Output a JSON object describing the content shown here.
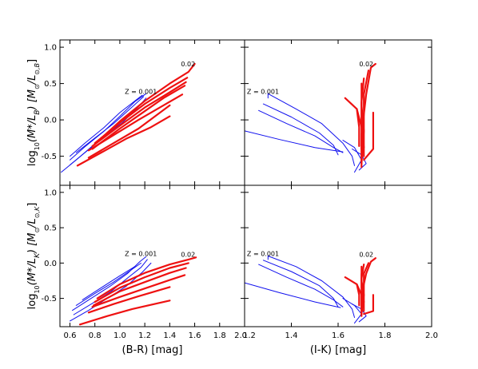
{
  "chart_data": {
    "type": "line",
    "colors": {
      "low_z": "#1010ee",
      "high_z": "#ee1111",
      "frame": "#000000"
    },
    "x_axes": [
      {
        "label": "(B-R) [mag]",
        "ticks": [
          "0.6",
          "0.8",
          "1.0",
          "1.2",
          "1.4",
          "1.6",
          "1.8",
          "2.0"
        ],
        "xlim": [
          0.52,
          2.0
        ]
      },
      {
        "label": "(I-K) [mag]",
        "ticks": [
          "1.2",
          "1.4",
          "1.6",
          "1.8",
          "2.0"
        ],
        "xlim": [
          1.2,
          2.0
        ]
      }
    ],
    "y_axes": [
      {
        "label": "log10(M*/L_B)  [M_sun/L_sun,B]",
        "ticks": [
          "1.0",
          "0.5",
          "0.0",
          "-0.5"
        ],
        "ylim": [
          -0.9,
          1.1
        ]
      },
      {
        "label": "log10(M*/L_K)  [M_sun/L_sun,K]",
        "ticks": [
          "1.0",
          "0.5",
          "0.0",
          "-0.5"
        ],
        "ylim": [
          -0.9,
          1.1
        ]
      }
    ],
    "panels": [
      {
        "id": "BR_B",
        "annotations": [
          {
            "text": "Z = 0.001",
            "x": 1.04,
            "y": 0.36
          },
          {
            "text": "0.02",
            "x": 1.49,
            "y": 0.74
          }
        ],
        "blue": [
          [
            [
              0.53,
              -0.72
            ],
            [
              0.65,
              -0.55
            ],
            [
              0.8,
              -0.33
            ],
            [
              0.95,
              -0.13
            ],
            [
              1.08,
              0.08
            ],
            [
              1.2,
              0.27
            ]
          ],
          [
            [
              0.6,
              -0.62
            ],
            [
              0.72,
              -0.45
            ],
            [
              0.87,
              -0.24
            ],
            [
              1.02,
              -0.04
            ],
            [
              1.15,
              0.18
            ],
            [
              1.21,
              0.3
            ]
          ],
          [
            [
              0.6,
              -0.55
            ],
            [
              0.72,
              -0.37
            ],
            [
              0.87,
              -0.16
            ],
            [
              1.0,
              0.05
            ],
            [
              1.12,
              0.25
            ],
            [
              1.21,
              0.36
            ]
          ],
          [
            [
              0.6,
              -0.5
            ],
            [
              0.72,
              -0.32
            ],
            [
              0.87,
              -0.11
            ],
            [
              1.0,
              0.1
            ],
            [
              1.18,
              0.34
            ]
          ],
          [
            [
              0.65,
              -0.45
            ],
            [
              0.8,
              -0.25
            ],
            [
              0.95,
              -0.05
            ],
            [
              1.1,
              0.18
            ],
            [
              1.19,
              0.32
            ]
          ]
        ],
        "red": [
          [
            [
              0.66,
              -0.63
            ],
            [
              0.85,
              -0.45
            ],
            [
              1.05,
              -0.26
            ],
            [
              1.25,
              -0.1
            ],
            [
              1.4,
              0.05
            ]
          ],
          [
            [
              0.75,
              -0.52
            ],
            [
              0.95,
              -0.32
            ],
            [
              1.15,
              -0.12
            ],
            [
              1.4,
              0.2
            ]
          ],
          [
            [
              0.75,
              -0.42
            ],
            [
              0.95,
              -0.21
            ],
            [
              1.15,
              0.0
            ],
            [
              1.35,
              0.2
            ],
            [
              1.5,
              0.35
            ]
          ],
          [
            [
              0.78,
              -0.4
            ],
            [
              1.0,
              -0.12
            ],
            [
              1.2,
              0.12
            ],
            [
              1.35,
              0.3
            ],
            [
              1.52,
              0.47
            ]
          ],
          [
            [
              0.78,
              -0.36
            ],
            [
              1.0,
              -0.08
            ],
            [
              1.2,
              0.17
            ],
            [
              1.4,
              0.38
            ],
            [
              1.53,
              0.52
            ]
          ],
          [
            [
              0.8,
              -0.32
            ],
            [
              1.0,
              -0.04
            ],
            [
              1.2,
              0.22
            ],
            [
              1.4,
              0.44
            ],
            [
              1.54,
              0.58
            ]
          ],
          [
            [
              0.82,
              -0.3
            ],
            [
              1.0,
              -0.02
            ],
            [
              1.2,
              0.26
            ],
            [
              1.4,
              0.5
            ],
            [
              1.55,
              0.66
            ],
            [
              1.6,
              0.77
            ]
          ]
        ]
      },
      {
        "id": "IK_B",
        "annotations": [
          {
            "text": "Z = 0.001",
            "x": 1.21,
            "y": 0.36
          },
          {
            "text": "0.02",
            "x": 1.69,
            "y": 0.74
          }
        ],
        "blue": [
          [
            [
              1.2,
              -0.15
            ],
            [
              1.35,
              -0.27
            ],
            [
              1.5,
              -0.38
            ],
            [
              1.62,
              -0.44
            ]
          ],
          [
            [
              1.26,
              0.13
            ],
            [
              1.38,
              -0.05
            ],
            [
              1.5,
              -0.22
            ],
            [
              1.58,
              -0.38
            ],
            [
              1.62,
              -0.45
            ]
          ],
          [
            [
              1.28,
              0.22
            ],
            [
              1.4,
              0.04
            ],
            [
              1.52,
              -0.18
            ],
            [
              1.58,
              -0.35
            ],
            [
              1.6,
              -0.48
            ]
          ],
          [
            [
              1.3,
              0.3
            ],
            [
              1.3,
              0.36
            ],
            [
              1.42,
              0.15
            ],
            [
              1.53,
              -0.05
            ],
            [
              1.62,
              -0.32
            ],
            [
              1.66,
              -0.5
            ],
            [
              1.67,
              -0.63
            ]
          ],
          [
            [
              1.62,
              -0.28
            ],
            [
              1.67,
              -0.38
            ],
            [
              1.7,
              -0.55
            ],
            [
              1.67,
              -0.72
            ]
          ],
          [
            [
              1.66,
              -0.4
            ],
            [
              1.7,
              -0.48
            ],
            [
              1.72,
              -0.6
            ],
            [
              1.69,
              -0.69
            ]
          ]
        ],
        "red": [
          [
            [
              1.63,
              0.3
            ],
            [
              1.68,
              0.15
            ],
            [
              1.7,
              -0.1
            ],
            [
              1.7,
              -0.4
            ]
          ],
          [
            [
              1.68,
              0.15
            ],
            [
              1.69,
              -0.1
            ],
            [
              1.69,
              -0.36
            ]
          ],
          [
            [
              1.7,
              0.24
            ],
            [
              1.7,
              -0.08
            ],
            [
              1.71,
              -0.38
            ]
          ],
          [
            [
              1.7,
              0.5
            ],
            [
              1.7,
              0.2
            ],
            [
              1.71,
              -0.15
            ],
            [
              1.7,
              -0.6
            ]
          ],
          [
            [
              1.71,
              0.57
            ],
            [
              1.7,
              0.25
            ],
            [
              1.7,
              -0.2
            ],
            [
              1.7,
              -0.65
            ]
          ],
          [
            [
              1.73,
              0.68
            ],
            [
              1.71,
              0.35
            ],
            [
              1.71,
              -0.05
            ],
            [
              1.71,
              -0.5
            ]
          ],
          [
            [
              1.76,
              0.77
            ],
            [
              1.74,
              0.72
            ],
            [
              1.72,
              0.35
            ],
            [
              1.7,
              -0.2
            ],
            [
              1.7,
              -0.58
            ]
          ],
          [
            [
              1.75,
              0.1
            ],
            [
              1.75,
              -0.4
            ],
            [
              1.71,
              -0.55
            ]
          ]
        ]
      },
      {
        "id": "BR_K",
        "annotations": [
          {
            "text": "Z = 0.001",
            "x": 1.04,
            "y": 0.1
          },
          {
            "text": "0.02",
            "x": 1.49,
            "y": 0.09
          }
        ],
        "blue": [
          [
            [
              0.6,
              -0.82
            ],
            [
              0.75,
              -0.67
            ],
            [
              0.9,
              -0.5
            ],
            [
              1.05,
              -0.33
            ],
            [
              1.18,
              -0.13
            ],
            [
              1.25,
              0.0
            ]
          ],
          [
            [
              0.63,
              -0.73
            ],
            [
              0.78,
              -0.57
            ],
            [
              0.93,
              -0.4
            ],
            [
              1.07,
              -0.2
            ],
            [
              1.17,
              -0.06
            ],
            [
              1.22,
              0.05
            ]
          ],
          [
            [
              0.62,
              -0.67
            ],
            [
              0.77,
              -0.5
            ],
            [
              0.92,
              -0.33
            ],
            [
              1.06,
              -0.15
            ],
            [
              1.16,
              0.02
            ],
            [
              1.21,
              0.09
            ]
          ],
          [
            [
              0.65,
              -0.6
            ],
            [
              0.8,
              -0.43
            ],
            [
              0.95,
              -0.27
            ],
            [
              1.08,
              -0.11
            ],
            [
              1.17,
              0.0
            ]
          ],
          [
            [
              0.7,
              -0.52
            ],
            [
              0.85,
              -0.35
            ],
            [
              1.0,
              -0.18
            ],
            [
              1.12,
              -0.05
            ]
          ]
        ],
        "red": [
          [
            [
              0.68,
              -0.87
            ],
            [
              0.9,
              -0.75
            ],
            [
              1.1,
              -0.65
            ],
            [
              1.4,
              -0.53
            ]
          ],
          [
            [
              0.75,
              -0.7
            ],
            [
              0.95,
              -0.58
            ],
            [
              1.15,
              -0.47
            ],
            [
              1.4,
              -0.34
            ]
          ],
          [
            [
              0.78,
              -0.62
            ],
            [
              1.0,
              -0.48
            ],
            [
              1.2,
              -0.36
            ],
            [
              1.4,
              -0.24
            ],
            [
              1.52,
              -0.17
            ]
          ],
          [
            [
              0.79,
              -0.6
            ],
            [
              1.0,
              -0.4
            ],
            [
              1.2,
              -0.27
            ],
            [
              1.4,
              -0.14
            ],
            [
              1.53,
              -0.07
            ]
          ],
          [
            [
              0.8,
              -0.55
            ],
            [
              1.0,
              -0.35
            ],
            [
              1.2,
              -0.2
            ],
            [
              1.4,
              -0.07
            ],
            [
              1.55,
              0.0
            ]
          ],
          [
            [
              0.82,
              -0.5
            ],
            [
              1.0,
              -0.3
            ],
            [
              1.2,
              -0.14
            ],
            [
              1.4,
              -0.02
            ],
            [
              1.55,
              0.05
            ],
            [
              1.61,
              0.08
            ]
          ]
        ]
      },
      {
        "id": "IK_K",
        "annotations": [
          {
            "text": "Z = 0.001",
            "x": 1.21,
            "y": 0.1
          },
          {
            "text": "0.02",
            "x": 1.69,
            "y": 0.09
          }
        ],
        "blue": [
          [
            [
              1.2,
              -0.28
            ],
            [
              1.35,
              -0.42
            ],
            [
              1.5,
              -0.55
            ],
            [
              1.61,
              -0.63
            ]
          ],
          [
            [
              1.26,
              -0.02
            ],
            [
              1.38,
              -0.2
            ],
            [
              1.5,
              -0.37
            ],
            [
              1.58,
              -0.52
            ],
            [
              1.62,
              -0.62
            ]
          ],
          [
            [
              1.28,
              0.04
            ],
            [
              1.4,
              -0.12
            ],
            [
              1.52,
              -0.32
            ],
            [
              1.58,
              -0.5
            ],
            [
              1.6,
              -0.62
            ]
          ],
          [
            [
              1.3,
              0.05
            ],
            [
              1.3,
              0.1
            ],
            [
              1.42,
              -0.05
            ],
            [
              1.53,
              -0.25
            ],
            [
              1.62,
              -0.48
            ],
            [
              1.66,
              -0.65
            ],
            [
              1.67,
              -0.77
            ]
          ],
          [
            [
              1.62,
              -0.5
            ],
            [
              1.67,
              -0.6
            ],
            [
              1.7,
              -0.72
            ],
            [
              1.67,
              -0.85
            ]
          ],
          [
            [
              1.66,
              -0.58
            ],
            [
              1.7,
              -0.65
            ],
            [
              1.72,
              -0.75
            ],
            [
              1.69,
              -0.83
            ]
          ]
        ],
        "red": [
          [
            [
              1.63,
              -0.2
            ],
            [
              1.68,
              -0.3
            ],
            [
              1.7,
              -0.45
            ],
            [
              1.7,
              -0.65
            ]
          ],
          [
            [
              1.68,
              -0.3
            ],
            [
              1.69,
              -0.45
            ],
            [
              1.69,
              -0.6
            ]
          ],
          [
            [
              1.7,
              -0.15
            ],
            [
              1.7,
              -0.35
            ],
            [
              1.71,
              -0.55
            ]
          ],
          [
            [
              1.7,
              -0.05
            ],
            [
              1.7,
              -0.25
            ],
            [
              1.71,
              -0.45
            ],
            [
              1.7,
              -0.72
            ]
          ],
          [
            [
              1.71,
              -0.02
            ],
            [
              1.7,
              -0.22
            ],
            [
              1.7,
              -0.45
            ],
            [
              1.7,
              -0.75
            ]
          ],
          [
            [
              1.73,
              0.0
            ],
            [
              1.71,
              -0.15
            ],
            [
              1.71,
              -0.4
            ],
            [
              1.71,
              -0.68
            ]
          ],
          [
            [
              1.76,
              0.07
            ],
            [
              1.74,
              0.02
            ],
            [
              1.72,
              -0.15
            ],
            [
              1.7,
              -0.45
            ],
            [
              1.7,
              -0.72
            ]
          ],
          [
            [
              1.75,
              -0.45
            ],
            [
              1.75,
              -0.68
            ],
            [
              1.71,
              -0.72
            ]
          ]
        ]
      }
    ]
  }
}
